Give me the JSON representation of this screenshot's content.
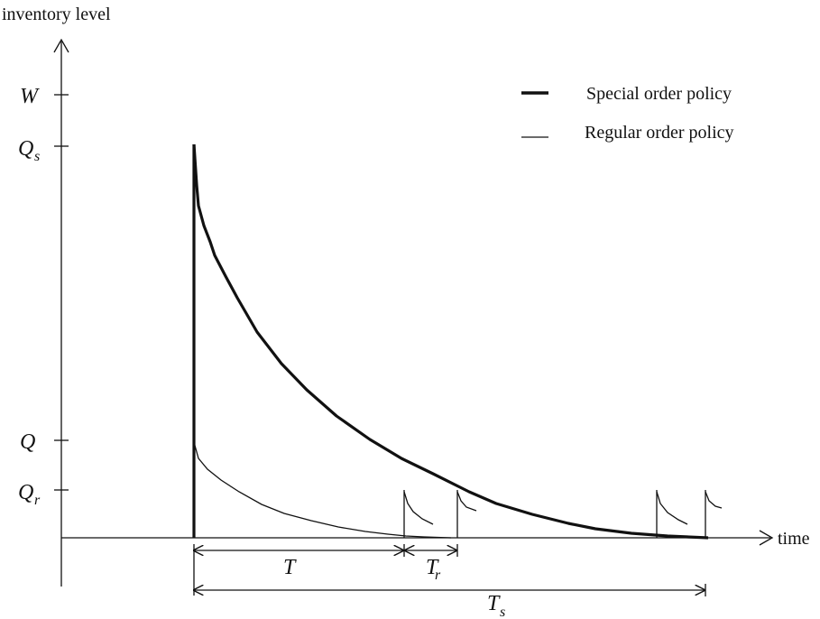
{
  "axes": {
    "y_label": "inventory level",
    "x_label": "time"
  },
  "y_ticks": {
    "W": "W",
    "Qs_main": "Q",
    "Qs_sub": "s",
    "Q": "Q",
    "Qr_main": "Q",
    "Qr_sub": "r"
  },
  "legend": {
    "special": "Special order policy",
    "regular": "Regular order policy"
  },
  "intervals": {
    "T": "T",
    "Tr_main": "T",
    "Tr_sub": "r",
    "Ts_main": "T",
    "Ts_sub": "s"
  }
}
